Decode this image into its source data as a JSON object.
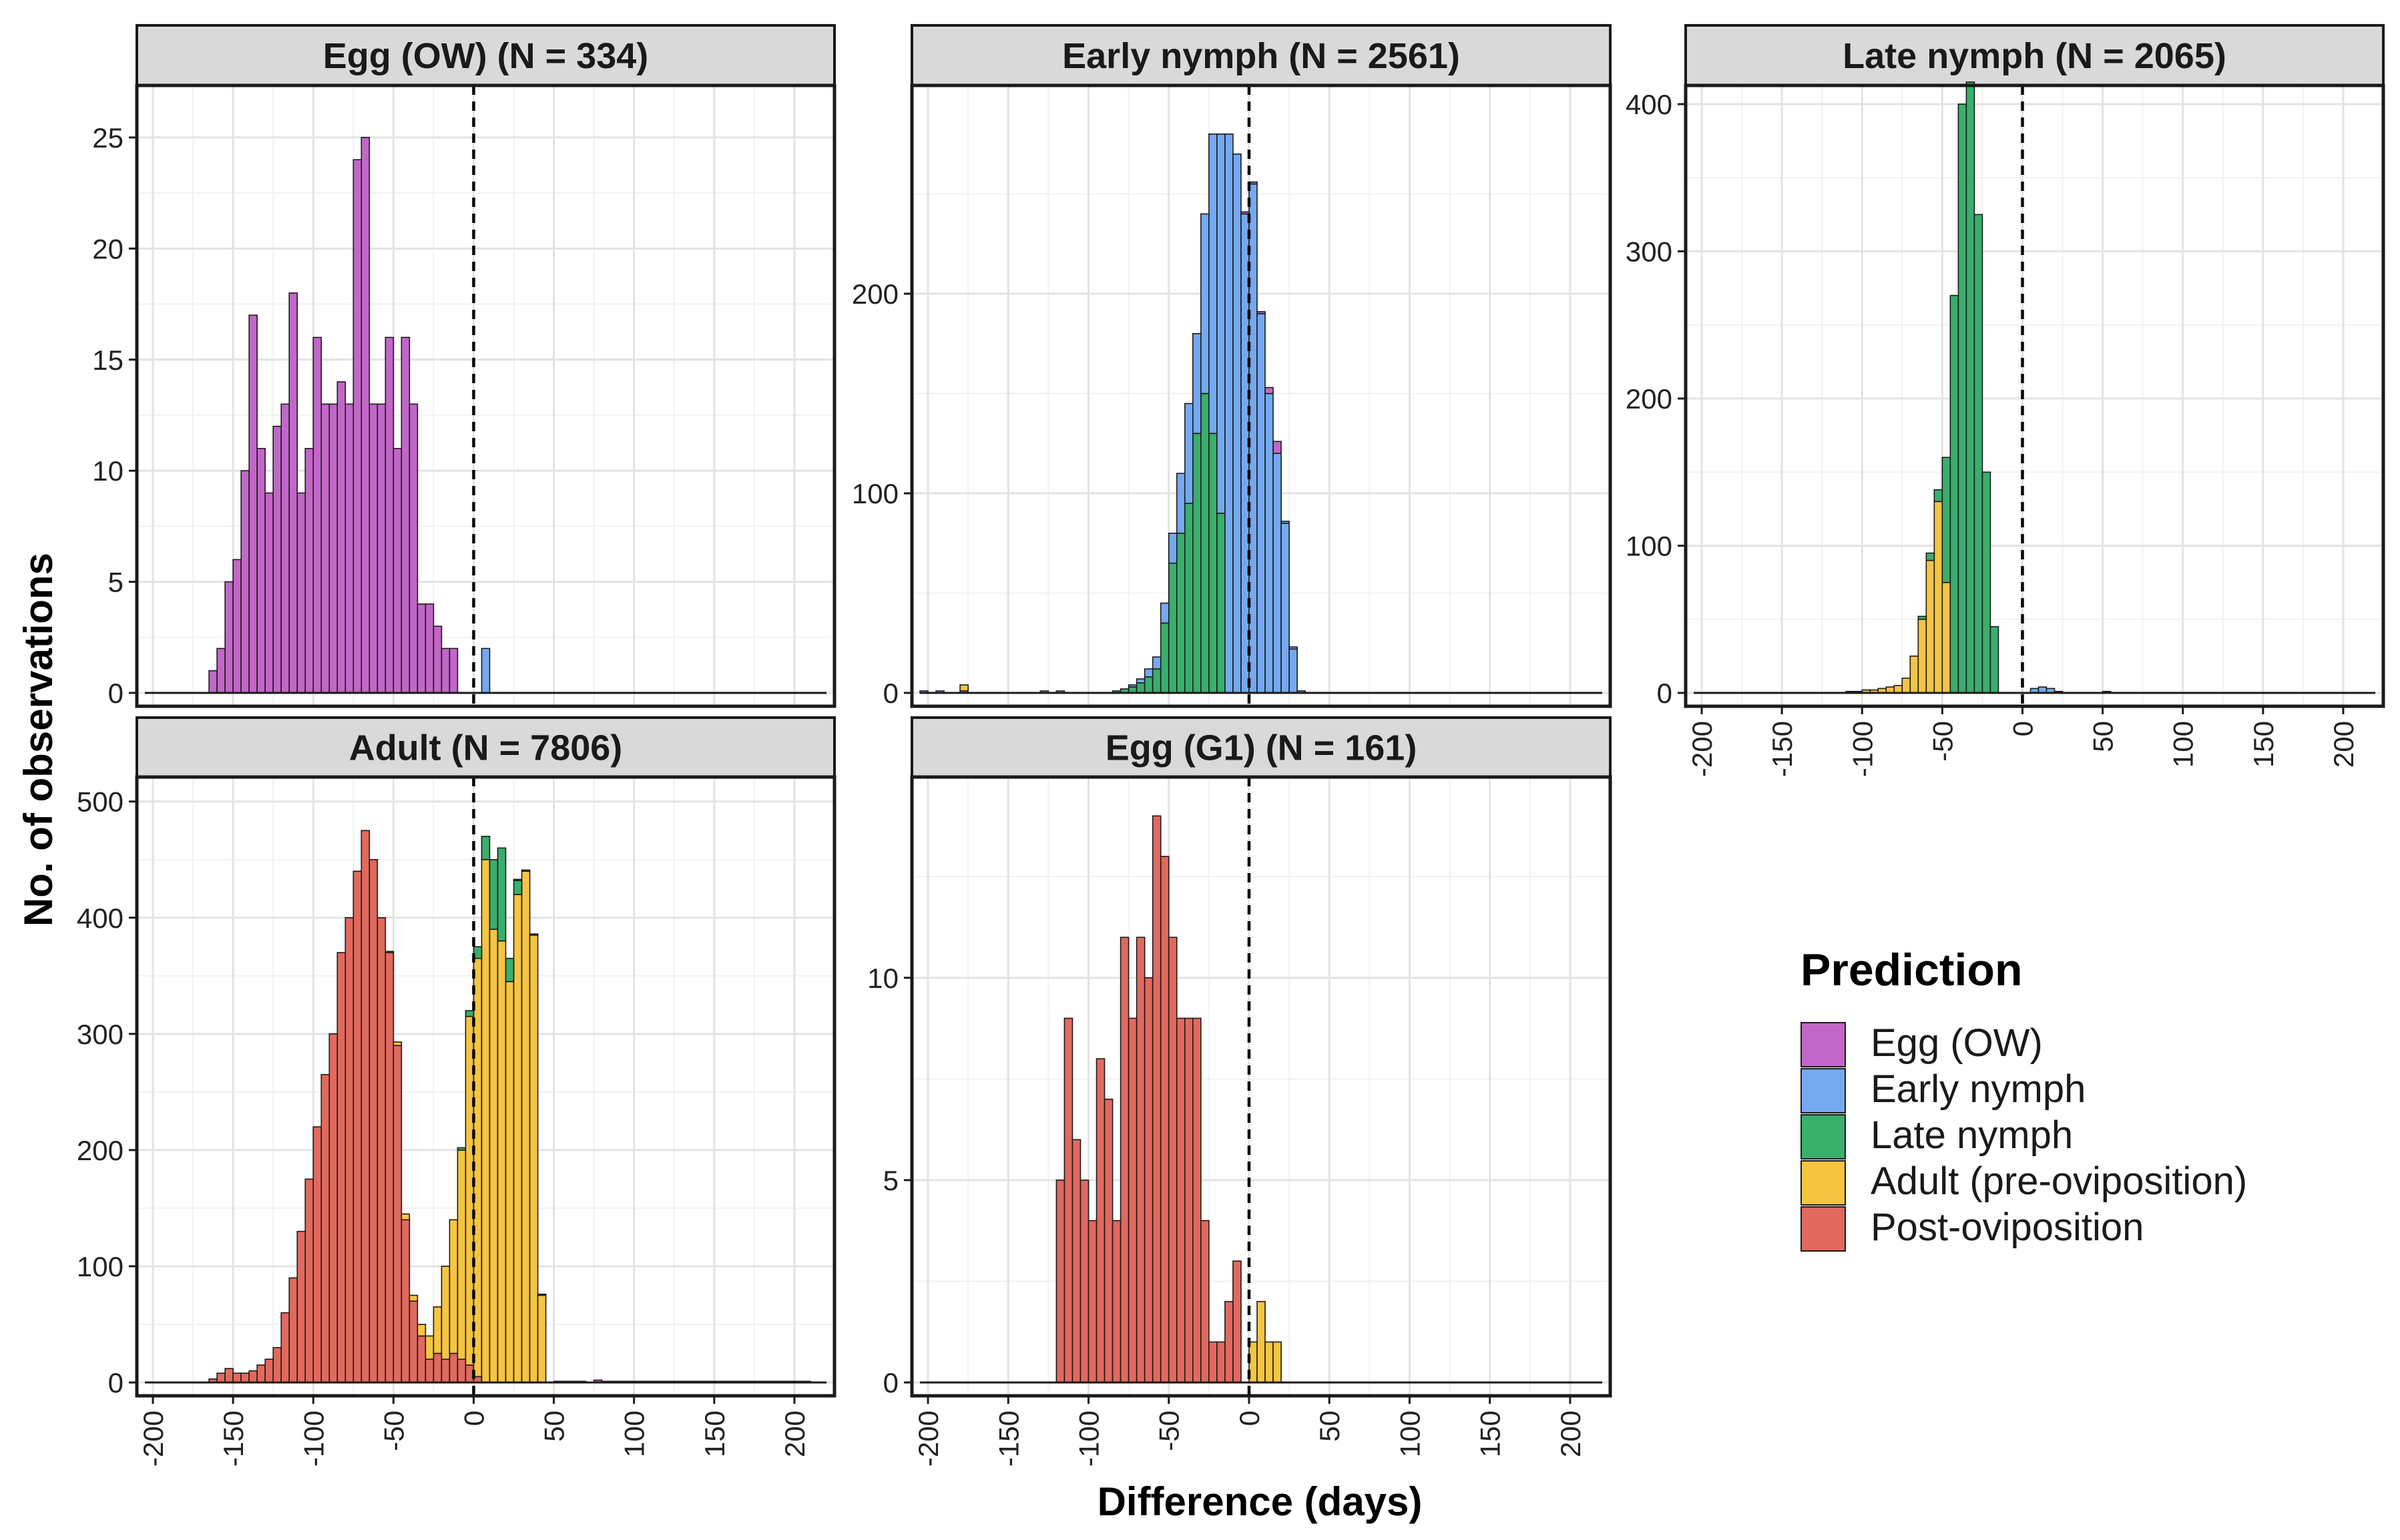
{
  "figure": {
    "ylabel": "No. of observations",
    "xlabel": "Difference (days)"
  },
  "legend": {
    "title": "Prediction",
    "items": [
      {
        "key": "egg_ow",
        "label": "Egg (OW)",
        "color": "#C267C8"
      },
      {
        "key": "early",
        "label": "Early nymph",
        "color": "#74A9F0"
      },
      {
        "key": "late",
        "label": "Late nymph",
        "color": "#3AAE6C"
      },
      {
        "key": "adult",
        "label": "Adult (pre-oviposition)",
        "color": "#F5C542"
      },
      {
        "key": "post",
        "label": "Post-oviposition",
        "color": "#E2695E"
      }
    ]
  },
  "chart_data": [
    {
      "type": "histogram-stacked",
      "title": "Egg (OW) (N = 334)",
      "xlim": [
        -210,
        225
      ],
      "ylim": [
        0,
        26.5
      ],
      "xticks": [
        -200,
        -150,
        -100,
        -50,
        0,
        50,
        100,
        150,
        200
      ],
      "yticks": [
        0,
        5,
        10,
        15,
        20,
        25
      ],
      "show_x_axis": false,
      "baseline": [
        -205,
        220
      ],
      "bin_width": 5,
      "series": [
        {
          "key": "egg_ow",
          "start": -165,
          "values": [
            1,
            2,
            5,
            6,
            10,
            17,
            11,
            9,
            12,
            13,
            18,
            9,
            11,
            16,
            13,
            13,
            14,
            13,
            24,
            25,
            13,
            13,
            16,
            11,
            16,
            13,
            4,
            4,
            3,
            2,
            2
          ]
        },
        {
          "key": "early",
          "start": 5,
          "values": [
            2
          ]
        }
      ]
    },
    {
      "type": "histogram-stacked",
      "title": "Early nymph (N = 2561)",
      "xlim": [
        -210,
        225
      ],
      "ylim": [
        0,
        295
      ],
      "xticks": [
        -200,
        -150,
        -100,
        -50,
        0,
        50,
        100,
        150,
        200
      ],
      "yticks": [
        0,
        100,
        200
      ],
      "show_x_axis": false,
      "baseline": [
        -205,
        220
      ],
      "bin_width": 5,
      "series": [
        {
          "key": "late",
          "start": -85,
          "values": [
            1,
            2,
            3,
            5,
            8,
            12,
            35,
            65,
            80,
            95,
            130,
            150,
            130,
            90,
            0,
            0,
            0,
            0,
            0,
            0,
            0,
            0,
            0
          ]
        },
        {
          "key": "early",
          "start": -85,
          "values": [
            0,
            0,
            1,
            2,
            4,
            6,
            10,
            15,
            30,
            50,
            50,
            90,
            150,
            190,
            280,
            270,
            240,
            255,
            190,
            150,
            120,
            85,
            22
          ]
        },
        {
          "key": "egg_ow",
          "start": -30,
          "values": [
            0,
            0,
            0,
            0,
            0,
            1,
            1,
            1,
            3,
            6
          ]
        },
        {
          "key": "egg_ow",
          "start": -180,
          "values": [
            1
          ]
        },
        {
          "key": "early",
          "start": -205,
          "values": [
            1,
            0,
            1
          ]
        },
        {
          "key": "early",
          "start": -130,
          "values": [
            1,
            0,
            1
          ]
        },
        {
          "key": "early",
          "start": 20,
          "values": [
            1,
            1,
            1
          ]
        },
        {
          "key": "adult",
          "start": -180,
          "values": [
            3
          ]
        }
      ]
    },
    {
      "type": "histogram-stacked",
      "title": "Late nymph (N = 2065)",
      "xlim": [
        -210,
        225
      ],
      "ylim": [
        0,
        400
      ],
      "xticks": [
        -200,
        -150,
        -100,
        -50,
        0,
        50,
        100,
        150,
        200
      ],
      "yticks": [
        0,
        100,
        200,
        300,
        400
      ],
      "show_x_axis": true,
      "baseline": [
        -205,
        220
      ],
      "bin_width": 5,
      "series": [
        {
          "key": "adult",
          "start": -110,
          "values": [
            1,
            1,
            2,
            2,
            3,
            4,
            5,
            10,
            25,
            50,
            90,
            130,
            75,
            0,
            0,
            0,
            0,
            0,
            0
          ]
        },
        {
          "key": "late",
          "start": -110,
          "values": [
            0,
            0,
            0,
            0,
            0,
            0,
            0,
            0,
            0,
            2,
            5,
            8,
            85,
            270,
            400,
            415,
            325,
            150,
            45
          ]
        },
        {
          "key": "early",
          "start": 5,
          "values": [
            3,
            4,
            3,
            1,
            0,
            0,
            0,
            0,
            0,
            1
          ]
        }
      ]
    },
    {
      "type": "histogram-stacked",
      "title": "Adult (N = 7806)",
      "xlim": [
        -210,
        225
      ],
      "ylim": [
        0,
        505
      ],
      "xticks": [
        -200,
        -150,
        -100,
        -50,
        0,
        50,
        100,
        150,
        200
      ],
      "yticks": [
        0,
        100,
        200,
        300,
        400,
        500
      ],
      "show_x_axis": true,
      "baseline": [
        -205,
        220
      ],
      "bin_width": 5,
      "series": [
        {
          "key": "post",
          "start": -165,
          "values": [
            3,
            8,
            12,
            8,
            8,
            10,
            15,
            20,
            30,
            60,
            90,
            130,
            175,
            220,
            265,
            300,
            370,
            400,
            440,
            475,
            450,
            400,
            370,
            290,
            140,
            70,
            40,
            20,
            25,
            20,
            25,
            20,
            15,
            5
          ]
        },
        {
          "key": "adult",
          "start": -70,
          "values": [
            0,
            0,
            0,
            1,
            3,
            5,
            5,
            10,
            20,
            40,
            80,
            115,
            180,
            300,
            360,
            450,
            390,
            380,
            345,
            420,
            440,
            385,
            75
          ]
        },
        {
          "key": "late",
          "start": -10,
          "values": [
            2,
            5,
            10,
            20,
            60,
            80,
            20,
            12
          ]
        },
        {
          "key": "egg_ow",
          "start": 25,
          "values": [
            1,
            1,
            1,
            1,
            0,
            1,
            1,
            1,
            1,
            0,
            2,
            1,
            1,
            1,
            1,
            1,
            1,
            1,
            1,
            1,
            1,
            1,
            1,
            1,
            1,
            1,
            1,
            1,
            1,
            1,
            1,
            1,
            1,
            1,
            1,
            1,
            1
          ]
        }
      ]
    },
    {
      "type": "histogram-stacked",
      "title": "Egg (G1) (N = 161)",
      "xlim": [
        -210,
        225
      ],
      "ylim": [
        0,
        14.5
      ],
      "xticks": [
        -200,
        -150,
        -100,
        -50,
        0,
        50,
        100,
        150,
        200
      ],
      "yticks": [
        0,
        5,
        10
      ],
      "show_x_axis": true,
      "baseline": [
        -205,
        220
      ],
      "bin_width": 5,
      "series": [
        {
          "key": "post",
          "start": -120,
          "values": [
            5,
            9,
            6,
            5,
            4,
            8,
            7,
            4,
            11,
            9,
            11,
            10,
            14,
            13,
            11,
            9,
            9,
            9,
            4,
            1,
            1,
            2,
            3
          ]
        },
        {
          "key": "adult",
          "start": 0,
          "values": [
            1,
            2,
            1,
            1
          ]
        }
      ]
    }
  ]
}
